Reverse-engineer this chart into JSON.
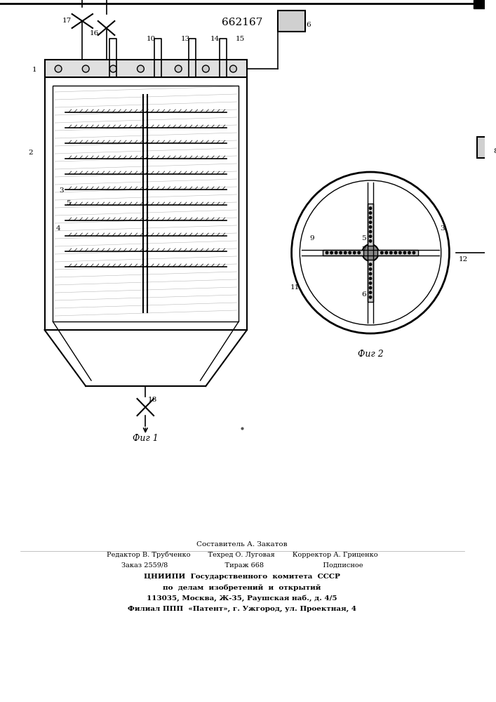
{
  "patent_number": "662167",
  "bg_color": "#ffffff",
  "line_color": "#000000",
  "fig1_label": "Фиг 1",
  "fig2_label": "Фиг 2",
  "footer_lines": [
    "Составитель А. Закатов",
    "Редактор В. Трубченко        Техред О. Луговая        Корректор А. Гриценко",
    "Заказ 2559/8                          Тираж 668                           Подписное",
    "ЦНИИПИ  Государственного  комитета  СССР",
    "по  делам  изобретений  и  открытий",
    "113035, Москва, Ж-35, Раушская наб., д. 4/5",
    "Филиал ППП  «Патент», г. Ужгород, ул. Проектная, 4"
  ]
}
